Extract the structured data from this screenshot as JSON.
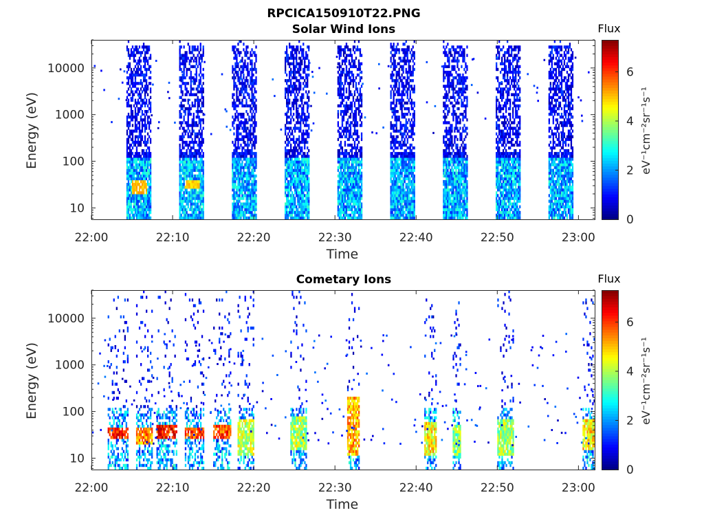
{
  "figure_title": "RPCICA150910T22.PNG",
  "chart_data": [
    {
      "type": "heatmap",
      "title": "Solar Wind Ions",
      "xlabel": "Time",
      "ylabel": "Energy (eV)",
      "y_scale": "log",
      "ylim": [
        5.7,
        40000
      ],
      "xlim": [
        "22:00",
        "23:02"
      ],
      "x_ticks": [
        "22:00",
        "22:10",
        "22:20",
        "22:30",
        "22:40",
        "22:50",
        "23:00"
      ],
      "y_ticks": [
        "10",
        "100",
        "1000",
        "10000"
      ],
      "colorbar": {
        "title": "Flux",
        "label": "eV⁻¹cm⁻²sr⁻¹s⁻¹",
        "range": [
          0,
          7.3
        ],
        "ticks": [
          "0",
          "2",
          "4",
          "6"
        ]
      },
      "bursts": [
        {
          "start": "22:04.3",
          "end": "22:07.3",
          "peak_flux": 5.2,
          "peak_energy_ev": [
            20,
            40
          ]
        },
        {
          "start": "22:10.8",
          "end": "22:13.8",
          "peak_flux": 5.0,
          "peak_energy_ev": [
            25,
            40
          ]
        },
        {
          "start": "22:17.3",
          "end": "22:20.3",
          "peak_flux": 3.2
        },
        {
          "start": "22:23.8",
          "end": "22:26.8",
          "peak_flux": 3.0
        },
        {
          "start": "22:30.3",
          "end": "22:33.3",
          "peak_flux": 3.0
        },
        {
          "start": "22:36.8",
          "end": "22:39.8",
          "peak_flux": 2.9
        },
        {
          "start": "22:43.3",
          "end": "22:46.3",
          "peak_flux": 2.9
        },
        {
          "start": "22:49.8",
          "end": "22:52.8",
          "peak_flux": 2.9
        },
        {
          "start": "22:56.3",
          "end": "22:59.3",
          "peak_flux": 2.9
        }
      ]
    },
    {
      "type": "heatmap",
      "title": "Cometary Ions",
      "xlabel": "Time",
      "ylabel": "Energy (eV)",
      "y_scale": "log",
      "ylim": [
        5.7,
        40000
      ],
      "xlim": [
        "22:00",
        "23:02"
      ],
      "x_ticks": [
        "22:00",
        "22:10",
        "22:20",
        "22:30",
        "22:40",
        "22:50",
        "23:00"
      ],
      "y_ticks": [
        "10",
        "100",
        "1000",
        "10000"
      ],
      "colorbar": {
        "title": "Flux",
        "label": "eV⁻¹cm⁻²sr⁻¹s⁻¹",
        "range": [
          0,
          7.3
        ],
        "ticks": [
          "0",
          "2",
          "4",
          "6"
        ]
      },
      "bursts": [
        {
          "start": "22:02.0",
          "end": "22:04.5",
          "peak_flux": 7.0,
          "peak_energy_ev": [
            25,
            45
          ]
        },
        {
          "start": "22:05.5",
          "end": "22:07.5",
          "peak_flux": 6.2,
          "peak_energy_ev": [
            20,
            45
          ]
        },
        {
          "start": "22:08.0",
          "end": "22:10.5",
          "peak_flux": 7.2,
          "peak_energy_ev": [
            25,
            50
          ]
        },
        {
          "start": "22:11.5",
          "end": "22:13.8",
          "peak_flux": 6.8,
          "peak_energy_ev": [
            25,
            45
          ]
        },
        {
          "start": "22:15.0",
          "end": "22:17.2",
          "peak_flux": 6.8,
          "peak_energy_ev": [
            25,
            50
          ]
        },
        {
          "start": "22:18.0",
          "end": "22:20.0",
          "peak_flux": 5.0,
          "peak_energy_ev": [
            12,
            70
          ]
        },
        {
          "start": "22:24.5",
          "end": "22:26.5",
          "peak_flux": 4.8,
          "peak_energy_ev": [
            15,
            80
          ]
        },
        {
          "start": "22:31.5",
          "end": "22:33.0",
          "peak_flux": 6.0,
          "peak_energy_ev": [
            12,
            200
          ]
        },
        {
          "start": "22:41.0",
          "end": "22:42.5",
          "peak_flux": 5.5,
          "peak_energy_ev": [
            12,
            60
          ]
        },
        {
          "start": "22:44.5",
          "end": "22:45.5",
          "peak_flux": 4.5,
          "peak_energy_ev": [
            12,
            50
          ]
        },
        {
          "start": "22:50.0",
          "end": "22:52.0",
          "peak_flux": 4.8,
          "peak_energy_ev": [
            12,
            70
          ]
        },
        {
          "start": "23:00.5",
          "end": "23:02.0",
          "peak_flux": 5.5,
          "peak_energy_ev": [
            15,
            70
          ]
        }
      ]
    }
  ]
}
